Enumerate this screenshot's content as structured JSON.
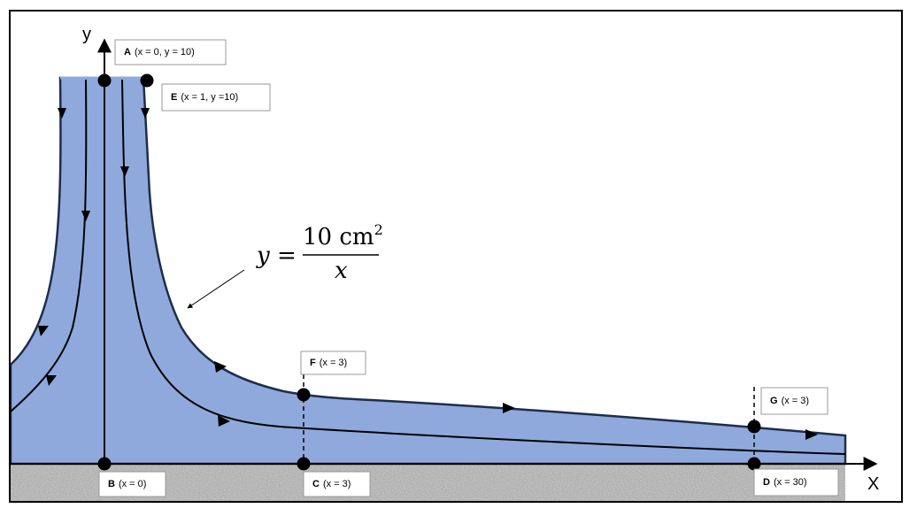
{
  "axes": {
    "x_label": "X",
    "y_label": "y"
  },
  "equation": {
    "lhs": "y =",
    "numerator": "10 cm",
    "exponent": "2",
    "denominator": "x"
  },
  "points": [
    {
      "letter": "A",
      "text": "(x = 0, y = 10)"
    },
    {
      "letter": "E",
      "text": "(x = 1, y =10)"
    },
    {
      "letter": "F",
      "text": "(x = 3)"
    },
    {
      "letter": "G",
      "text": "(x = 3)"
    },
    {
      "letter": "B",
      "text": "(x = 0)"
    },
    {
      "letter": "C",
      "text": "(x = 3)"
    },
    {
      "letter": "D",
      "text": "(x = 30)"
    }
  ]
}
